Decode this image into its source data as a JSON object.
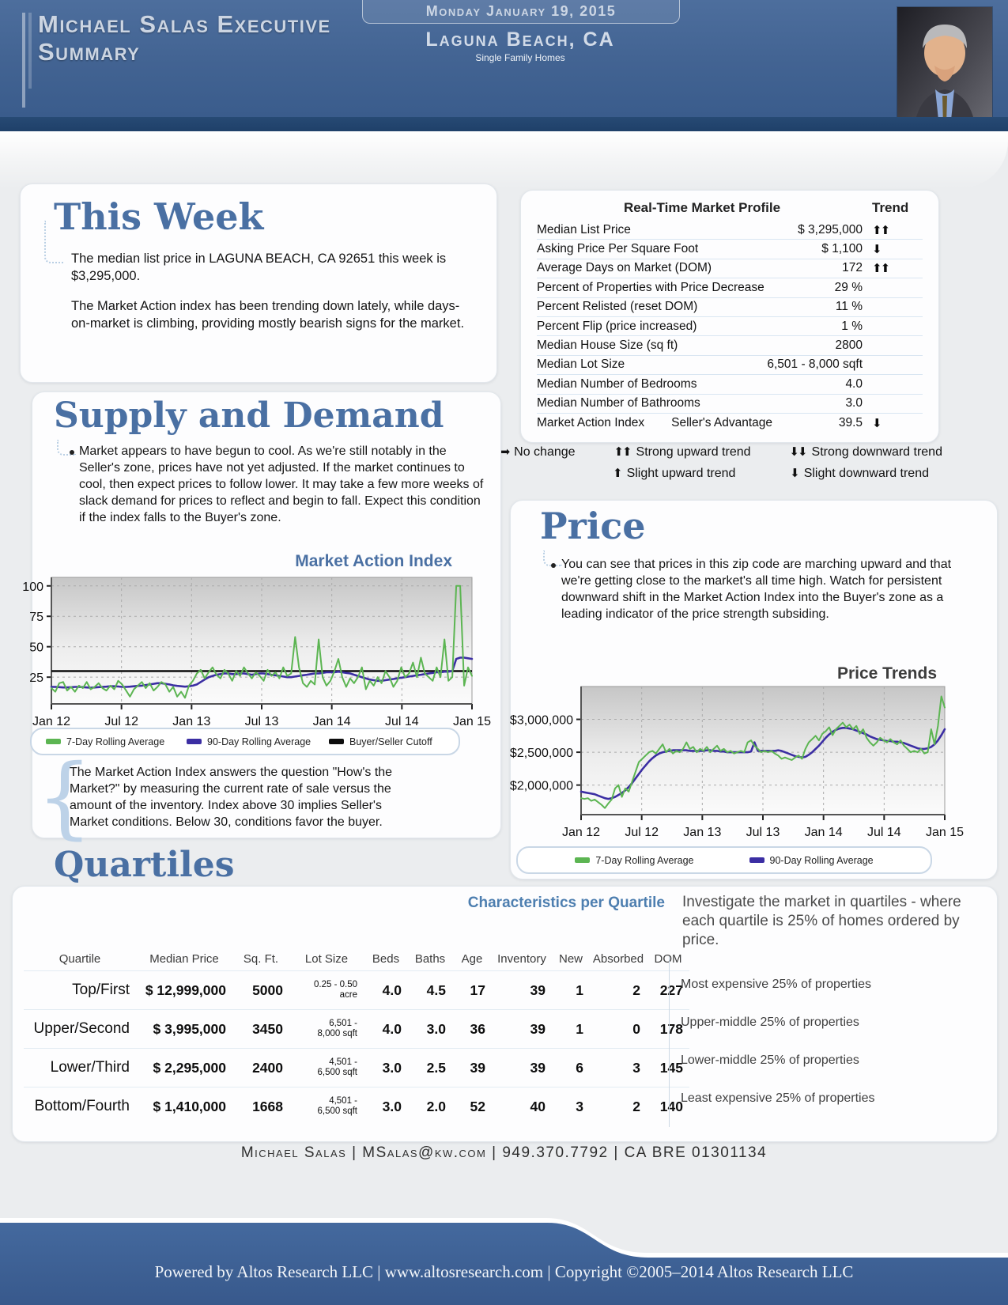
{
  "header": {
    "title": "Michael Salas Executive Summary",
    "date": "Monday January 19, 2015",
    "location": "Laguna Beach, CA",
    "subtitle": "Single Family Homes"
  },
  "this_week": {
    "heading": "This Week",
    "para1": "The median list price in LAGUNA BEACH, CA 92651 this week is $3,295,000.",
    "para2": "The Market Action index has been trending down lately, while days-on-market is climbing, providing mostly bearish signs for the market."
  },
  "market_profile": {
    "title": "Real-Time Market Profile",
    "trend_header": "Trend",
    "rows": [
      {
        "label": "Median List Price",
        "value": "$ 3,295,000",
        "trend": "strong-up",
        "trend_arrows": "⬆⬆"
      },
      {
        "label": "Asking Price Per Square Foot",
        "value": "$ 1,100",
        "trend": "slight-down",
        "trend_arrows": "⬇"
      },
      {
        "label": "Average Days on Market (DOM)",
        "value": "172",
        "trend": "strong-up",
        "trend_arrows": "⬆⬆"
      },
      {
        "label": "Percent of Properties with Price Decrease",
        "value": "29 %",
        "trend": "none",
        "trend_arrows": ""
      },
      {
        "label": "Percent Relisted (reset DOM)",
        "value": "11 %",
        "trend": "none",
        "trend_arrows": ""
      },
      {
        "label": "Percent Flip (price increased)",
        "value": "1 %",
        "trend": "none",
        "trend_arrows": ""
      },
      {
        "label": "Median House Size (sq ft)",
        "value": "2800",
        "trend": "none",
        "trend_arrows": ""
      },
      {
        "label": "Median Lot Size",
        "value": "6,501 - 8,000 sqft",
        "trend": "none",
        "trend_arrows": ""
      },
      {
        "label": "Median Number of Bedrooms",
        "value": "4.0",
        "trend": "none",
        "trend_arrows": ""
      },
      {
        "label": "Median Number of Bathrooms",
        "value": "3.0",
        "trend": "none",
        "trend_arrows": ""
      },
      {
        "label": "Market Action Index",
        "label2": "Seller's Advantage",
        "value": "39.5",
        "trend": "slight-down",
        "trend_arrows": "⬇"
      }
    ],
    "legend": [
      {
        "icon": "⬅➡",
        "label": "No change"
      },
      {
        "icon": "⬆⬆",
        "label": "Strong upward trend"
      },
      {
        "icon": "⬇⬇",
        "label": "Strong downward trend"
      },
      {
        "icon": "⬆",
        "label": "Slight upward trend"
      },
      {
        "icon": "⬇",
        "label": "Slight downward trend"
      }
    ]
  },
  "supply_demand": {
    "heading": "Supply and Demand",
    "bullet": "Market appears to have begun to cool.  As we're still notably in the Seller's zone, prices have not yet adjusted.  If the market continues to cool, then expect prices to follow lower. It may take a few more weeks of slack demand for prices to reflect and begin to fall.  Expect this condition if the index falls to the Buyer's zone.",
    "note": "The Market Action Index answers the question \"How's the Market?\" by measuring the current rate of sale versus the amount of the inventory.  Index above 30 implies Seller's Market conditions. Below 30, conditions favor the buyer."
  },
  "price_section": {
    "heading": "Price",
    "bullet": "You can see that prices in this zip code are marching upward and that we're getting close to the market's all time high. Watch for persistent downward shift in the Market Action Index into the Buyer's zone as a leading indicator of the price strength subsiding."
  },
  "quartiles": {
    "heading": "Quartiles",
    "table_title": "Characteristics per Quartile",
    "intro": "Investigate the market in quartiles - where each quartile is 25% of homes ordered by price.",
    "columns": [
      "Quartile",
      "Median Price",
      "Sq. Ft.",
      "Lot Size",
      "Beds",
      "Baths",
      "Age",
      "Inventory",
      "New",
      "Absorbed",
      "DOM"
    ],
    "rows": [
      {
        "quartile": "Top/First",
        "median_price": "$ 12,999,000",
        "sq_ft": "5000",
        "lot_size": "0.25 - 0.50\nacre",
        "beds": "4.0",
        "baths": "4.5",
        "age": "17",
        "inventory": "39",
        "new": "1",
        "absorbed": "2",
        "dom": "227",
        "description": "Most expensive 25% of properties"
      },
      {
        "quartile": "Upper/Second",
        "median_price": "$ 3,995,000",
        "sq_ft": "3450",
        "lot_size": "6,501 -\n8,000 sqft",
        "beds": "4.0",
        "baths": "3.0",
        "age": "36",
        "inventory": "39",
        "new": "1",
        "absorbed": "0",
        "dom": "178",
        "description": "Upper-middle 25% of properties"
      },
      {
        "quartile": "Lower/Third",
        "median_price": "$ 2,295,000",
        "sq_ft": "2400",
        "lot_size": "4,501 -\n6,500 sqft",
        "beds": "3.0",
        "baths": "2.5",
        "age": "39",
        "inventory": "39",
        "new": "6",
        "absorbed": "3",
        "dom": "145",
        "description": "Lower-middle 25% of properties"
      },
      {
        "quartile": "Bottom/Fourth",
        "median_price": "$ 1,410,000",
        "sq_ft": "1668",
        "lot_size": "4,501 -\n6,500 sqft",
        "beds": "3.0",
        "baths": "2.0",
        "age": "52",
        "inventory": "40",
        "new": "3",
        "absorbed": "2",
        "dom": "140",
        "description": "Least expensive 25% of properties"
      }
    ]
  },
  "contact": "Michael Salas | MSalas@kw.com | 949.370.7792 | CA BRE 01301134",
  "footer": "Powered by Altos Research LLC | www.altosresearch.com | Copyright ©2005–2014 Altos Research LLC",
  "colors": {
    "heading_blue": "#4a70a3",
    "seven_day_green": "#5cb552",
    "ninety_day_purple": "#3b2ea3",
    "cutoff_black": "#0d0d0d",
    "header_blue": "#426392",
    "footer_blue": "#40669b"
  },
  "chart_data": [
    {
      "type": "line",
      "title": "Market Action Index",
      "x_ticks": [
        "Jan 12",
        "Jul 12",
        "Jan 13",
        "Jul 13",
        "Jan 14",
        "Jul 14",
        "Jan 15"
      ],
      "y_ticks": [
        {
          "v": 25,
          "label": "25"
        },
        {
          "v": 50,
          "label": "50"
        },
        {
          "v": 75,
          "label": "75"
        },
        {
          "v": 100,
          "label": "100"
        }
      ],
      "ylim": [
        3,
        107
      ],
      "cutoff": 30,
      "grid": "dashed",
      "legend_position": "below",
      "series": [
        {
          "name": "7-Day Rolling Average",
          "color": "#5cb552",
          "values": [
            16,
            13,
            20,
            21,
            14,
            17,
            13,
            18,
            16,
            21,
            15,
            17,
            20,
            16,
            14,
            18,
            15,
            22,
            19,
            14,
            9,
            15,
            18,
            21,
            16,
            20,
            14,
            17,
            21,
            19,
            13,
            17,
            9,
            13,
            8,
            18,
            22,
            28,
            31,
            24,
            29,
            33,
            27,
            24,
            31,
            28,
            22,
            30,
            26,
            33,
            28,
            24,
            29,
            26,
            22,
            31,
            26,
            29,
            24,
            33,
            26,
            28,
            58,
            33,
            20,
            17,
            22,
            19,
            56,
            25,
            18,
            22,
            30,
            40,
            25,
            17,
            24,
            20,
            25,
            33,
            15,
            22,
            18,
            25,
            20,
            30,
            25,
            17,
            22,
            33,
            25,
            28,
            37,
            25,
            41,
            28,
            25,
            22,
            33,
            25,
            56,
            22,
            25,
            100,
            100,
            18,
            33,
            26
          ]
        },
        {
          "name": "90-Day Rolling Average",
          "color": "#3b2ea3",
          "values": [
            17,
            17,
            16.8,
            16.5,
            16.5,
            16.7,
            17,
            17,
            16.8,
            16.5,
            16.3,
            16.5,
            16.8,
            17,
            17.2,
            17.5,
            17.5,
            17.3,
            17,
            17,
            17.2,
            17.5,
            17.8,
            18,
            18.5,
            19,
            19.5,
            20,
            20,
            19.5,
            19,
            18.3,
            17.8,
            17.5,
            17.2,
            17.5,
            18,
            19,
            21,
            23,
            25,
            26,
            27,
            27.5,
            28,
            28,
            27.5,
            27.5,
            28,
            28,
            27.5,
            27,
            27.5,
            28,
            28,
            27.5,
            27,
            26.5,
            26,
            25.5,
            25,
            25,
            25.5,
            26,
            26.5,
            27,
            27.5,
            28,
            28,
            28.5,
            29,
            29,
            29,
            29.5,
            29,
            28.5,
            28,
            27,
            26,
            25,
            24,
            23,
            22.5,
            22,
            22,
            22.5,
            23,
            23.5,
            24,
            24.5,
            25,
            25.5,
            26,
            26.5,
            27,
            27.5,
            28,
            28.5,
            29,
            29,
            29.5,
            29.5,
            30,
            40,
            41,
            41,
            40.5,
            40
          ]
        },
        {
          "name": "Buyer/Seller Cutoff",
          "color": "#0d0d0d",
          "constant": 30
        }
      ]
    },
    {
      "type": "line",
      "title": "Price Trends",
      "x_ticks": [
        "Jan 12",
        "Jul 12",
        "Jan 13",
        "Jul 13",
        "Jan 14",
        "Jul 14",
        "Jan 15"
      ],
      "y_ticks": [
        {
          "v": 2000000,
          "label": "$2,000,000"
        },
        {
          "v": 2500000,
          "label": "$2,500,000"
        },
        {
          "v": 3000000,
          "label": "$3,000,000"
        }
      ],
      "ylim": [
        1550000,
        3500000
      ],
      "grid": "dashed",
      "legend_position": "below",
      "series": [
        {
          "name": "7-Day Rolling Average",
          "color": "#5cb552",
          "values": [
            1800000,
            1790000,
            1800000,
            1760000,
            1780000,
            1740000,
            1700000,
            1650000,
            1720000,
            1780000,
            1950000,
            2000000,
            1820000,
            1950000,
            1900000,
            2050000,
            2200000,
            2350000,
            2400000,
            2450000,
            2500000,
            2520000,
            2480000,
            2550000,
            2620000,
            2500000,
            2550000,
            2480000,
            2520000,
            2500000,
            2550000,
            2650000,
            2550000,
            2580000,
            2500000,
            2550000,
            2520000,
            2580000,
            2500000,
            2550000,
            2600000,
            2520000,
            2550000,
            2500000,
            2520000,
            2480000,
            2500000,
            2520000,
            2500000,
            2650000,
            2680000,
            2600000,
            2550000,
            2500000,
            2520000,
            2500000,
            2520000,
            2480000,
            2450000,
            2400000,
            2420000,
            2400000,
            2380000,
            2420000,
            2450000,
            2400000,
            2550000,
            2650000,
            2700000,
            2750000,
            2680000,
            2780000,
            2820000,
            2880000,
            2760000,
            2850000,
            2900000,
            2950000,
            2880000,
            2920000,
            2850000,
            2900000,
            2780000,
            2850000,
            2720000,
            2650000,
            2600000,
            2650000,
            2720000,
            2680000,
            2650000,
            2700000,
            2650000,
            2620000,
            2680000,
            2600000,
            2550000,
            2500000,
            2520000,
            2500000,
            2550000,
            2480000,
            2500000,
            2850000,
            2620000,
            2900000,
            3350000,
            3180000
          ]
        },
        {
          "name": "90-Day Rolling Average",
          "color": "#3b2ea3",
          "values": [
            1900000,
            1890000,
            1880000,
            1870000,
            1860000,
            1840000,
            1820000,
            1800000,
            1790000,
            1800000,
            1820000,
            1850000,
            1880000,
            1920000,
            1970000,
            2030000,
            2100000,
            2170000,
            2240000,
            2300000,
            2360000,
            2410000,
            2450000,
            2480000,
            2500000,
            2510000,
            2520000,
            2530000,
            2530000,
            2530000,
            2530000,
            2530000,
            2520000,
            2520000,
            2520000,
            2520000,
            2520000,
            2530000,
            2530000,
            2520000,
            2520000,
            2510000,
            2510000,
            2500000,
            2500000,
            2500000,
            2500000,
            2500000,
            2500000,
            2500000,
            2510000,
            2650000,
            2520000,
            2520000,
            2520000,
            2520000,
            2520000,
            2520000,
            2530000,
            2520000,
            2500000,
            2480000,
            2460000,
            2440000,
            2430000,
            2420000,
            2430000,
            2460000,
            2500000,
            2550000,
            2600000,
            2660000,
            2720000,
            2770000,
            2810000,
            2840000,
            2860000,
            2870000,
            2870000,
            2860000,
            2850000,
            2830000,
            2810000,
            2790000,
            2770000,
            2740000,
            2720000,
            2700000,
            2690000,
            2680000,
            2670000,
            2670000,
            2660000,
            2660000,
            2650000,
            2640000,
            2620000,
            2600000,
            2580000,
            2560000,
            2550000,
            2550000,
            2560000,
            2580000,
            2620000,
            2680000,
            2760000,
            2850000
          ]
        }
      ]
    }
  ]
}
